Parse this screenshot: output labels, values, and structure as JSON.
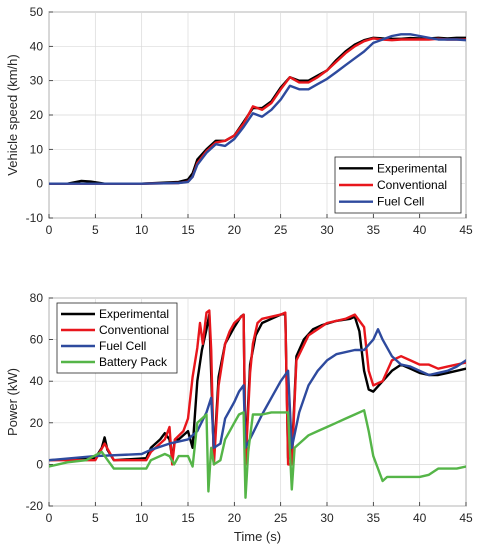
{
  "chart_data": [
    {
      "type": "line",
      "xlabel": "",
      "ylabel": "Vehicle speed (km/h)",
      "xlim": [
        0,
        45
      ],
      "ylim": [
        -10,
        50
      ],
      "xticks": [
        0,
        5,
        10,
        15,
        20,
        25,
        30,
        35,
        40,
        45
      ],
      "yticks": [
        -10,
        0,
        10,
        20,
        30,
        40,
        50
      ],
      "grid": true,
      "legend": "bottom-right",
      "series": [
        {
          "name": "Experimental",
          "color": "#000000",
          "x": [
            0,
            2,
            3.5,
            4.5,
            6,
            10,
            14,
            15,
            15.5,
            16,
            17,
            18,
            19,
            20,
            21,
            22,
            23,
            24,
            25,
            26,
            27,
            28,
            29,
            30,
            31,
            32,
            33,
            34,
            35,
            36,
            37,
            38,
            39,
            40,
            41,
            42,
            43,
            44,
            45
          ],
          "values": [
            0,
            0,
            0.8,
            0.6,
            0,
            0,
            0.5,
            1.2,
            3,
            7,
            10,
            12.5,
            12.5,
            14,
            18,
            22,
            22,
            24,
            28,
            31,
            30,
            30,
            31.5,
            33,
            36,
            38.5,
            40.5,
            41.8,
            42.5,
            42.3,
            42.2,
            42.2,
            42.4,
            42.3,
            42.3,
            42.5,
            42.3,
            42.5,
            42.5
          ]
        },
        {
          "name": "Conventional",
          "color": "#e8161c",
          "x": [
            0,
            5,
            10,
            14,
            15,
            15.5,
            16,
            17,
            18,
            19,
            20,
            21,
            22,
            23,
            24,
            25,
            26,
            27,
            28,
            29,
            30,
            31,
            32,
            33,
            34,
            35,
            36,
            37,
            38,
            39,
            40,
            41,
            42,
            43,
            44,
            45
          ],
          "values": [
            0,
            0,
            0,
            0.2,
            0.6,
            2,
            6,
            9.5,
            12,
            12.5,
            14,
            17.5,
            22.5,
            21.5,
            23.5,
            27.5,
            31,
            29.5,
            29.5,
            31,
            33,
            35.5,
            38,
            40,
            41.5,
            42.3,
            42,
            41.8,
            42,
            42,
            42,
            42,
            42.2,
            42,
            42,
            42
          ]
        },
        {
          "name": "Fuel Cell",
          "color": "#2e4a9e",
          "x": [
            0,
            5,
            10,
            14,
            15,
            15.5,
            16,
            17,
            18,
            19,
            20,
            21,
            22,
            23,
            24,
            25,
            26,
            27,
            28,
            29,
            30,
            31,
            32,
            33,
            34,
            35,
            36,
            37,
            38,
            39,
            40,
            41,
            42,
            43,
            44,
            45
          ],
          "values": [
            0,
            0,
            0,
            0.2,
            0.5,
            2,
            5.5,
            9,
            11.5,
            11,
            13,
            16.5,
            20.5,
            19.5,
            21.5,
            24.5,
            28.5,
            27.5,
            27.5,
            29,
            30.5,
            32.5,
            34.5,
            36.5,
            38.5,
            41,
            42,
            43,
            43.5,
            43.5,
            43,
            42.5,
            42,
            42,
            42,
            41.8
          ]
        }
      ]
    },
    {
      "type": "line",
      "xlabel": "Time (s)",
      "ylabel": "Power (kW)",
      "xlim": [
        0,
        45
      ],
      "ylim": [
        -20,
        80
      ],
      "xticks": [
        0,
        5,
        10,
        15,
        20,
        25,
        30,
        35,
        40,
        45
      ],
      "yticks": [
        -20,
        0,
        20,
        40,
        60,
        80
      ],
      "grid": true,
      "legend": "top-left",
      "series": [
        {
          "name": "Experimental",
          "color": "#000000",
          "x": [
            0,
            5,
            5.7,
            6,
            6.3,
            7,
            10.5,
            11,
            12,
            12.5,
            13,
            13.3,
            13.6,
            14,
            15,
            15.5,
            16,
            16.5,
            17,
            17.3,
            17.8,
            18.3,
            19,
            20,
            20.7,
            21,
            21.2,
            21.7,
            22.3,
            23,
            24,
            25,
            25.5,
            25.8,
            26.2,
            26.7,
            27.5,
            28.5,
            29.5,
            31,
            32.5,
            33,
            33.5,
            34,
            34.5,
            35,
            36,
            37,
            38,
            39,
            40,
            41,
            42,
            43,
            44,
            45
          ],
          "values": [
            2,
            3,
            8,
            13,
            7,
            2,
            3,
            8,
            12,
            15,
            12,
            3,
            12,
            12,
            16,
            8,
            40,
            55,
            65,
            72,
            3,
            42,
            58,
            66,
            71,
            72,
            3,
            48,
            62,
            68,
            70,
            72,
            72.5,
            3,
            3,
            52,
            60,
            65,
            67,
            69,
            70,
            71,
            64,
            45,
            36,
            35,
            40,
            45,
            48,
            46,
            44,
            43,
            43,
            44,
            45,
            46
          ]
        },
        {
          "name": "Conventional",
          "color": "#e8161c",
          "x": [
            0,
            5,
            6,
            7,
            10.5,
            11,
            12.5,
            13,
            13.3,
            13.6,
            14.5,
            15,
            15.5,
            16,
            16.3,
            16.6,
            17,
            17.3,
            17.5,
            17.8,
            18.3,
            19,
            19.5,
            20,
            20.5,
            21,
            21.2,
            21.7,
            22,
            22.5,
            23,
            24,
            25,
            25.5,
            25.8,
            26.2,
            26.7,
            28,
            30,
            32,
            33,
            34,
            34.5,
            35,
            36,
            37,
            38,
            39,
            40,
            41,
            42,
            43,
            44,
            45
          ],
          "values": [
            2,
            2,
            10,
            2,
            2,
            6,
            12,
            18,
            0,
            12,
            16,
            22,
            42,
            56,
            68,
            58,
            73,
            74,
            55,
            0,
            38,
            58,
            64,
            68,
            70,
            72,
            0,
            44,
            58,
            68,
            70,
            71,
            72,
            73,
            0,
            0,
            50,
            62,
            68,
            70,
            72,
            66,
            45,
            38,
            40,
            50,
            52,
            50,
            48,
            48,
            46,
            47,
            48,
            49
          ]
        },
        {
          "name": "Fuel Cell",
          "color": "#2e4a9e",
          "x": [
            0,
            5,
            10,
            11,
            13,
            15,
            16,
            17,
            17.5,
            17.8,
            18.5,
            19,
            20,
            20.5,
            21,
            21.2,
            22,
            23,
            24,
            25,
            25.8,
            26.2,
            27,
            28,
            29,
            30,
            31,
            33,
            34,
            35,
            35.5,
            36,
            37,
            38,
            39,
            40,
            41,
            42,
            43,
            44,
            45
          ],
          "values": [
            2,
            4,
            5,
            7,
            10,
            12,
            16,
            25,
            32,
            8,
            10,
            22,
            30,
            35,
            38,
            8,
            15,
            24,
            32,
            40,
            45,
            8,
            25,
            38,
            45,
            50,
            53,
            55,
            55,
            60,
            65,
            60,
            52,
            48,
            47,
            45,
            43,
            44,
            45,
            47,
            50
          ]
        },
        {
          "name": "Battery Pack",
          "color": "#55b548",
          "x": [
            0,
            2,
            4,
            5.7,
            6.5,
            7,
            9,
            10.5,
            11,
            12.5,
            13,
            13.5,
            14,
            15,
            15.5,
            16,
            16.5,
            17,
            17.2,
            17.5,
            17.8,
            18.5,
            19,
            20,
            20.5,
            21,
            21.2,
            21.5,
            22,
            23,
            24,
            25,
            25.8,
            26.2,
            26.5,
            27,
            28,
            29,
            30,
            31,
            32,
            33,
            34,
            34.5,
            35,
            36,
            36.5,
            38,
            40,
            41,
            42,
            43,
            44,
            45
          ],
          "values": [
            -1,
            1,
            2,
            6,
            1,
            -2,
            -2,
            -2,
            2,
            5,
            4,
            0,
            4,
            4,
            -1,
            20,
            22,
            24,
            -13,
            8,
            0,
            2,
            12,
            20,
            24,
            25,
            -16,
            6,
            24,
            24,
            25,
            25,
            25,
            -12,
            8,
            10,
            14,
            16,
            18,
            20,
            22,
            24,
            26,
            16,
            4,
            -8,
            -6,
            -6,
            -6,
            -5,
            -2,
            -2,
            -2,
            -1
          ]
        }
      ]
    }
  ]
}
